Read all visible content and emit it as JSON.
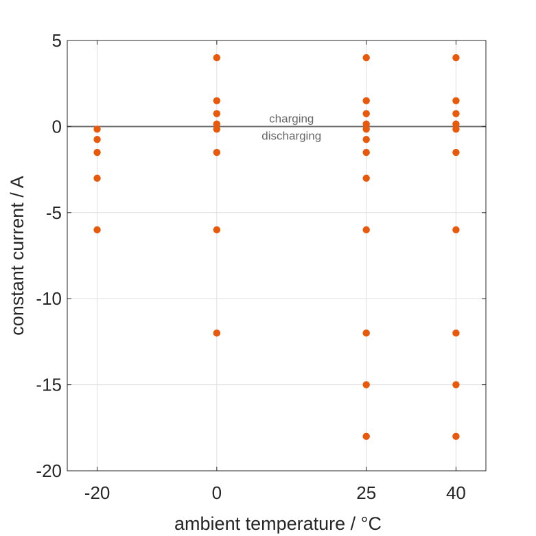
{
  "chart_data": {
    "type": "scatter",
    "title": "",
    "xlabel": "ambient temperature / °C",
    "ylabel": "constant current / A",
    "xlim": [
      -25,
      45
    ],
    "ylim": [
      -20,
      5
    ],
    "xticks": [
      -20,
      0,
      25,
      40
    ],
    "yticks": [
      5,
      0,
      -5,
      -10,
      -15,
      -20
    ],
    "grid": true,
    "marker_color": "#e8590c",
    "reference_line": {
      "y": 0,
      "color": "#666666"
    },
    "annotations": {
      "above_line": "charging",
      "below_line": "discharging"
    },
    "series": [
      {
        "points": [
          {
            "x": -20,
            "y": -0.15
          },
          {
            "x": -20,
            "y": -0.75
          },
          {
            "x": -20,
            "y": -1.5
          },
          {
            "x": -20,
            "y": -3
          },
          {
            "x": -20,
            "y": -6
          },
          {
            "x": 0,
            "y": 4
          },
          {
            "x": 0,
            "y": 1.5
          },
          {
            "x": 0,
            "y": 0.75
          },
          {
            "x": 0,
            "y": 0.15
          },
          {
            "x": 0,
            "y": -0.15
          },
          {
            "x": 0,
            "y": -1.5
          },
          {
            "x": 0,
            "y": -6
          },
          {
            "x": 0,
            "y": -12
          },
          {
            "x": 25,
            "y": 4
          },
          {
            "x": 25,
            "y": 1.5
          },
          {
            "x": 25,
            "y": 0.75
          },
          {
            "x": 25,
            "y": 0.15
          },
          {
            "x": 25,
            "y": -0.15
          },
          {
            "x": 25,
            "y": -0.75
          },
          {
            "x": 25,
            "y": -1.5
          },
          {
            "x": 25,
            "y": -3
          },
          {
            "x": 25,
            "y": -6
          },
          {
            "x": 25,
            "y": -12
          },
          {
            "x": 25,
            "y": -15
          },
          {
            "x": 25,
            "y": -18
          },
          {
            "x": 40,
            "y": 4
          },
          {
            "x": 40,
            "y": 1.5
          },
          {
            "x": 40,
            "y": 0.75
          },
          {
            "x": 40,
            "y": 0.15
          },
          {
            "x": 40,
            "y": -0.15
          },
          {
            "x": 40,
            "y": -1.5
          },
          {
            "x": 40,
            "y": -6
          },
          {
            "x": 40,
            "y": -12
          },
          {
            "x": 40,
            "y": -15
          },
          {
            "x": 40,
            "y": -18
          }
        ]
      }
    ]
  }
}
